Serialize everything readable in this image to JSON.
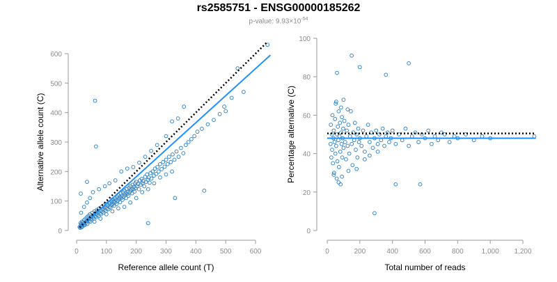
{
  "title": "rs2585751 - ENSG00000185262",
  "subtitle": {
    "prefix": "p-value: 9.93×10",
    "exponent": "-54"
  },
  "colors": {
    "points": "#3a88c8",
    "fit": "#1e90ff",
    "reference": "#000000",
    "axis": "#9a9a9a",
    "tick_text": "#8c8c8c"
  },
  "chart_data": [
    {
      "type": "scatter",
      "xlabel": "Reference allele count (T)",
      "ylabel": "Alternative allele count (C)",
      "xlim": [
        0,
        650
      ],
      "ylim": [
        0,
        600
      ],
      "x_ticks": [
        0,
        100,
        200,
        300,
        400,
        500,
        600
      ],
      "x_tick_labels": [
        "0",
        "100",
        "200",
        "300",
        "400",
        "500",
        "600"
      ],
      "y_ticks": [
        0,
        100,
        200,
        300,
        400,
        500,
        600
      ],
      "y_tick_labels": [
        "0",
        "100",
        "200",
        "300",
        "400",
        "500",
        "600"
      ],
      "grid": false,
      "lines": [
        {
          "role": "fit",
          "style": "solid",
          "x": [
            10,
            650
          ],
          "y": [
            8,
            595
          ]
        },
        {
          "role": "reference",
          "style": "dotted",
          "x": [
            10,
            640
          ],
          "y": [
            10,
            640
          ]
        }
      ],
      "points": [
        [
          10,
          12
        ],
        [
          12,
          9
        ],
        [
          13,
          25
        ],
        [
          14,
          15
        ],
        [
          15,
          18
        ],
        [
          16,
          22
        ],
        [
          17,
          11
        ],
        [
          18,
          30
        ],
        [
          19,
          14
        ],
        [
          20,
          20
        ],
        [
          22,
          28
        ],
        [
          24,
          17
        ],
        [
          25,
          35
        ],
        [
          26,
          24
        ],
        [
          28,
          19
        ],
        [
          30,
          40
        ],
        [
          32,
          26
        ],
        [
          34,
          32
        ],
        [
          35,
          45
        ],
        [
          36,
          22
        ],
        [
          38,
          36
        ],
        [
          40,
          50
        ],
        [
          42,
          33
        ],
        [
          44,
          41
        ],
        [
          45,
          55
        ],
        [
          46,
          30
        ],
        [
          48,
          46
        ],
        [
          50,
          38
        ],
        [
          52,
          60
        ],
        [
          54,
          44
        ],
        [
          56,
          52
        ],
        [
          58,
          40
        ],
        [
          60,
          65
        ],
        [
          62,
          48
        ],
        [
          64,
          57
        ],
        [
          66,
          45
        ],
        [
          68,
          70
        ],
        [
          70,
          53
        ],
        [
          72,
          62
        ],
        [
          74,
          49
        ],
        [
          76,
          75
        ],
        [
          78,
          58
        ],
        [
          80,
          68
        ],
        [
          82,
          55
        ],
        [
          84,
          80
        ],
        [
          86,
          64
        ],
        [
          88,
          74
        ],
        [
          90,
          60
        ],
        [
          92,
          85
        ],
        [
          94,
          70
        ],
        [
          96,
          78
        ],
        [
          98,
          66
        ],
        [
          100,
          90
        ],
        [
          102,
          75
        ],
        [
          104,
          86
        ],
        [
          106,
          72
        ],
        [
          108,
          95
        ],
        [
          110,
          80
        ],
        [
          112,
          92
        ],
        [
          114,
          78
        ],
        [
          116,
          100
        ],
        [
          118,
          86
        ],
        [
          120,
          105
        ],
        [
          122,
          90
        ],
        [
          124,
          98
        ],
        [
          126,
          84
        ],
        [
          128,
          110
        ],
        [
          130,
          96
        ],
        [
          132,
          104
        ],
        [
          134,
          90
        ],
        [
          136,
          115
        ],
        [
          138,
          101
        ],
        [
          140,
          120
        ],
        [
          142,
          107
        ],
        [
          144,
          112
        ],
        [
          146,
          96
        ],
        [
          148,
          125
        ],
        [
          150,
          110
        ],
        [
          152,
          118
        ],
        [
          154,
          104
        ],
        [
          156,
          130
        ],
        [
          158,
          115
        ],
        [
          160,
          135
        ],
        [
          162,
          121
        ],
        [
          164,
          126
        ],
        [
          166,
          110
        ],
        [
          168,
          140
        ],
        [
          170,
          124
        ],
        [
          172,
          132
        ],
        [
          174,
          118
        ],
        [
          176,
          145
        ],
        [
          178,
          130
        ],
        [
          180,
          150
        ],
        [
          182,
          135
        ],
        [
          184,
          140
        ],
        [
          186,
          126
        ],
        [
          188,
          155
        ],
        [
          190,
          140
        ],
        [
          192,
          148
        ],
        [
          194,
          132
        ],
        [
          196,
          160
        ],
        [
          198,
          144
        ],
        [
          200,
          165
        ],
        [
          203,
          150
        ],
        [
          206,
          158
        ],
        [
          209,
          140
        ],
        [
          212,
          170
        ],
        [
          215,
          155
        ],
        [
          218,
          175
        ],
        [
          221,
          160
        ],
        [
          224,
          168
        ],
        [
          227,
          150
        ],
        [
          230,
          182
        ],
        [
          233,
          165
        ],
        [
          236,
          190
        ],
        [
          239,
          172
        ],
        [
          242,
          180
        ],
        [
          245,
          162
        ],
        [
          248,
          195
        ],
        [
          251,
          176
        ],
        [
          255,
          200
        ],
        [
          259,
          186
        ],
        [
          263,
          210
        ],
        [
          267,
          192
        ],
        [
          271,
          215
        ],
        [
          275,
          200
        ],
        [
          280,
          225
        ],
        [
          285,
          208
        ],
        [
          290,
          232
        ],
        [
          295,
          216
        ],
        [
          300,
          240
        ],
        [
          305,
          225
        ],
        [
          310,
          250
        ],
        [
          316,
          232
        ],
        [
          322,
          258
        ],
        [
          328,
          240
        ],
        [
          335,
          268
        ],
        [
          342,
          250
        ],
        [
          350,
          280
        ],
        [
          358,
          262
        ],
        [
          366,
          290
        ],
        [
          375,
          300
        ],
        [
          385,
          310
        ],
        [
          395,
          320
        ],
        [
          405,
          335
        ],
        [
          420,
          345
        ],
        [
          440,
          360
        ],
        [
          460,
          375
        ],
        [
          480,
          395
        ],
        [
          495,
          420
        ],
        [
          500,
          405
        ],
        [
          520,
          450
        ],
        [
          540,
          550
        ],
        [
          560,
          470
        ],
        [
          640,
          630
        ],
        [
          15,
          60
        ],
        [
          25,
          80
        ],
        [
          35,
          95
        ],
        [
          45,
          110
        ],
        [
          55,
          130
        ],
        [
          75,
          140
        ],
        [
          95,
          150
        ],
        [
          110,
          160
        ],
        [
          130,
          170
        ],
        [
          150,
          200
        ],
        [
          170,
          210
        ],
        [
          190,
          215
        ],
        [
          210,
          230
        ],
        [
          230,
          250
        ],
        [
          250,
          270
        ],
        [
          270,
          290
        ],
        [
          300,
          320
        ],
        [
          320,
          370
        ],
        [
          340,
          380
        ],
        [
          360,
          420
        ],
        [
          60,
          30
        ],
        [
          80,
          40
        ],
        [
          100,
          55
        ],
        [
          120,
          65
        ],
        [
          140,
          75
        ],
        [
          160,
          80
        ],
        [
          180,
          95
        ],
        [
          200,
          110
        ],
        [
          220,
          130
        ],
        [
          240,
          140
        ],
        [
          260,
          160
        ],
        [
          280,
          180
        ],
        [
          300,
          190
        ],
        [
          320,
          200
        ],
        [
          14,
          125
        ],
        [
          35,
          165
        ],
        [
          62,
          440
        ],
        [
          65,
          285
        ],
        [
          240,
          25
        ],
        [
          330,
          110
        ],
        [
          428,
          135
        ]
      ]
    },
    {
      "type": "scatter",
      "xlabel": "Total number of reads",
      "ylabel": "Percentage alternative (C)",
      "xlim": [
        0,
        1280
      ],
      "ylim": [
        0,
        100
      ],
      "x_ticks": [
        0,
        200,
        400,
        600,
        800,
        1000,
        1200
      ],
      "x_tick_labels": [
        "0",
        "200",
        "400",
        "600",
        "800",
        "1,000",
        "1,200"
      ],
      "y_ticks": [
        0,
        20,
        40,
        60,
        80,
        100
      ],
      "y_tick_labels": [
        "0",
        "20",
        "40",
        "60",
        "80",
        "100"
      ],
      "grid": false,
      "lines": [
        {
          "role": "fit",
          "style": "solid",
          "x": [
            0,
            1280
          ],
          "y": [
            48,
            48
          ]
        },
        {
          "role": "reference",
          "style": "dotted",
          "x": [
            0,
            1280
          ],
          "y": [
            50.5,
            50.5
          ]
        }
      ],
      "points": [
        [
          20,
          45
        ],
        [
          22,
          55
        ],
        [
          25,
          38
        ],
        [
          28,
          50
        ],
        [
          30,
          42
        ],
        [
          32,
          60
        ],
        [
          35,
          35
        ],
        [
          38,
          48
        ],
        [
          40,
          52
        ],
        [
          42,
          30
        ],
        [
          45,
          46
        ],
        [
          48,
          58
        ],
        [
          50,
          40
        ],
        [
          52,
          66
        ],
        [
          55,
          44
        ],
        [
          58,
          27
        ],
        [
          60,
          50
        ],
        [
          62,
          36
        ],
        [
          65,
          54
        ],
        [
          68,
          47
        ],
        [
          70,
          62
        ],
        [
          72,
          33
        ],
        [
          75,
          49
        ],
        [
          78,
          56
        ],
        [
          80,
          41
        ],
        [
          82,
          24
        ],
        [
          85,
          51
        ],
        [
          88,
          45
        ],
        [
          90,
          59
        ],
        [
          92,
          38
        ],
        [
          95,
          48
        ],
        [
          98,
          53
        ],
        [
          100,
          43
        ],
        [
          105,
          57
        ],
        [
          110,
          46
        ],
        [
          115,
          37
        ],
        [
          120,
          52
        ],
        [
          125,
          44
        ],
        [
          130,
          55
        ],
        [
          135,
          40
        ],
        [
          140,
          49
        ],
        [
          145,
          62
        ],
        [
          150,
          45
        ],
        [
          155,
          34
        ],
        [
          160,
          51
        ],
        [
          165,
          47
        ],
        [
          170,
          56
        ],
        [
          175,
          42
        ],
        [
          180,
          50
        ],
        [
          185,
          38
        ],
        [
          190,
          53
        ],
        [
          195,
          46
        ],
        [
          200,
          48
        ],
        [
          210,
          44
        ],
        [
          220,
          52
        ],
        [
          230,
          41
        ],
        [
          240,
          49
        ],
        [
          250,
          55
        ],
        [
          260,
          46
        ],
        [
          270,
          51
        ],
        [
          280,
          43
        ],
        [
          290,
          48
        ],
        [
          300,
          52
        ],
        [
          310,
          45
        ],
        [
          320,
          50
        ],
        [
          330,
          47
        ],
        [
          340,
          53
        ],
        [
          350,
          44
        ],
        [
          360,
          49
        ],
        [
          370,
          51
        ],
        [
          380,
          46
        ],
        [
          390,
          48
        ],
        [
          400,
          52
        ],
        [
          420,
          45
        ],
        [
          440,
          50
        ],
        [
          460,
          47
        ],
        [
          480,
          53
        ],
        [
          500,
          44
        ],
        [
          520,
          49
        ],
        [
          540,
          51
        ],
        [
          560,
          46
        ],
        [
          580,
          50
        ],
        [
          600,
          48
        ],
        [
          620,
          52
        ],
        [
          640,
          45
        ],
        [
          660,
          49
        ],
        [
          680,
          47
        ],
        [
          700,
          51
        ],
        [
          720,
          50
        ],
        [
          750,
          46
        ],
        [
          780,
          49
        ],
        [
          800,
          48
        ],
        [
          850,
          50
        ],
        [
          900,
          47
        ],
        [
          950,
          49
        ],
        [
          1000,
          48
        ],
        [
          1270,
          49
        ],
        [
          60,
          82
        ],
        [
          150,
          91
        ],
        [
          200,
          85
        ],
        [
          290,
          9
        ],
        [
          360,
          81
        ],
        [
          500,
          87
        ],
        [
          420,
          24
        ],
        [
          570,
          24
        ],
        [
          100,
          68
        ],
        [
          55,
          67
        ],
        [
          40,
          29
        ],
        [
          70,
          25
        ],
        [
          90,
          28
        ],
        [
          130,
          31
        ],
        [
          180,
          32
        ],
        [
          230,
          37
        ],
        [
          260,
          39
        ],
        [
          310,
          41
        ],
        [
          125,
          63
        ],
        [
          85,
          64
        ]
      ]
    }
  ]
}
